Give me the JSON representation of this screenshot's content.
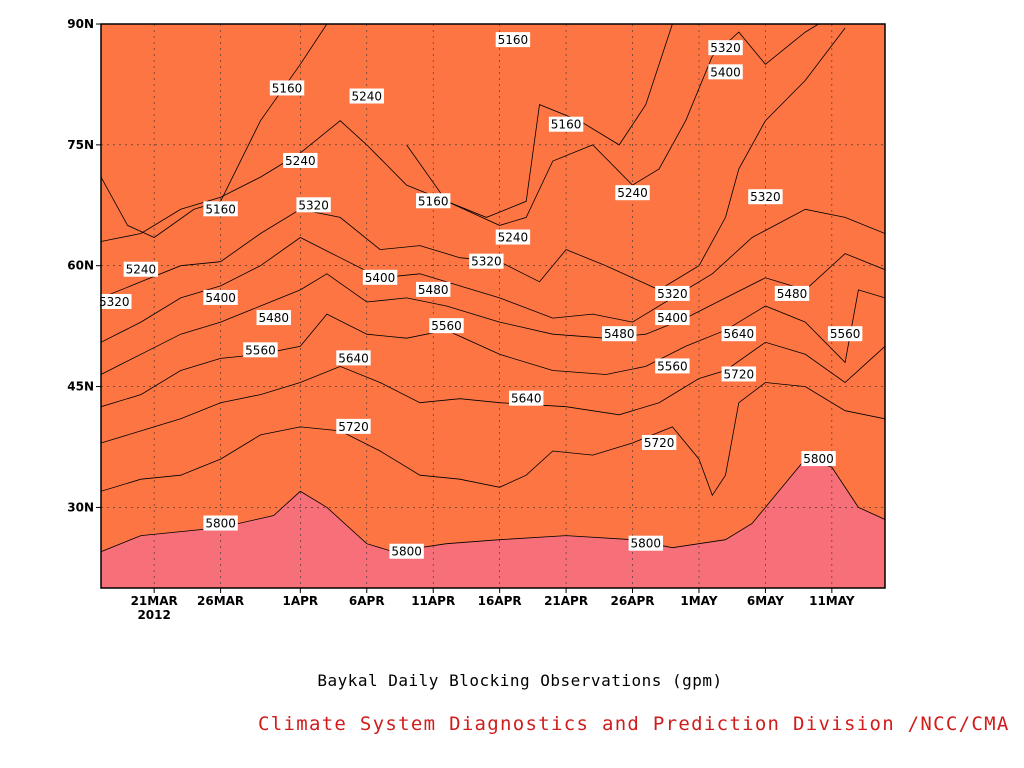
{
  "chart_data": {
    "type": "heatmap",
    "subtype": "filled-contour (latitude-time)",
    "title": "Baykal Daily Blocking Observations (gpm)",
    "credit": "Climate System Diagnostics and Prediction Division /NCC/CMA",
    "xlabel": "",
    "ylabel": "",
    "x_ticks": [
      {
        "value": "2012-03-21",
        "label": "21MAR",
        "sublabel": "2012"
      },
      {
        "value": "2012-03-26",
        "label": "26MAR"
      },
      {
        "value": "2012-04-01",
        "label": "1APR"
      },
      {
        "value": "2012-04-06",
        "label": "6APR"
      },
      {
        "value": "2012-04-11",
        "label": "11APR"
      },
      {
        "value": "2012-04-16",
        "label": "16APR"
      },
      {
        "value": "2012-04-21",
        "label": "21APR"
      },
      {
        "value": "2012-04-26",
        "label": "26APR"
      },
      {
        "value": "2012-05-01",
        "label": "1MAY"
      },
      {
        "value": "2012-05-06",
        "label": "6MAY"
      },
      {
        "value": "2012-05-11",
        "label": "11MAY"
      }
    ],
    "xlim": [
      "2012-03-17",
      "2012-05-15"
    ],
    "y_ticks": [
      {
        "value": 30,
        "label": "30N"
      },
      {
        "value": 45,
        "label": "45N"
      },
      {
        "value": 60,
        "label": "60N"
      },
      {
        "value": 75,
        "label": "75N"
      },
      {
        "value": 90,
        "label": "90N"
      }
    ],
    "ylim": [
      20,
      90
    ],
    "grid": true,
    "contour_levels": [
      5160,
      5240,
      5320,
      5400,
      5480,
      5560,
      5640,
      5720,
      5800
    ],
    "fill_colors": [
      "#0c1370",
      "#1519e1",
      "#5051ef",
      "#5889e2",
      "#66c3fb",
      "#fdfd7a",
      "#fde19e",
      "#fda267",
      "#fd7542",
      "#f66f79"
    ],
    "contour_lines": [
      {
        "level": 5800,
        "points": [
          [
            "2012-03-17",
            24.5
          ],
          [
            "2012-03-20",
            26.5
          ],
          [
            "2012-03-23",
            27
          ],
          [
            "2012-03-26",
            27.5
          ],
          [
            "2012-03-30",
            29
          ],
          [
            "2012-04-01",
            32
          ],
          [
            "2012-04-03",
            30
          ],
          [
            "2012-04-06",
            25.5
          ],
          [
            "2012-04-08",
            24.5
          ],
          [
            "2012-04-12",
            25.5
          ],
          [
            "2012-04-16",
            26
          ],
          [
            "2012-04-21",
            26.5
          ],
          [
            "2012-04-26",
            26
          ],
          [
            "2012-04-29",
            25
          ],
          [
            "2012-05-03",
            26
          ],
          [
            "2012-05-05",
            28
          ],
          [
            "2012-05-07",
            32
          ],
          [
            "2012-05-09",
            36
          ],
          [
            "2012-05-11",
            35
          ],
          [
            "2012-05-13",
            30
          ],
          [
            "2012-05-15",
            28.5
          ]
        ]
      },
      {
        "level": 5720,
        "points": [
          [
            "2012-03-17",
            32
          ],
          [
            "2012-03-20",
            33.5
          ],
          [
            "2012-03-23",
            34
          ],
          [
            "2012-03-26",
            36
          ],
          [
            "2012-03-29",
            39
          ],
          [
            "2012-04-01",
            40
          ],
          [
            "2012-04-04",
            39.5
          ],
          [
            "2012-04-07",
            37
          ],
          [
            "2012-04-10",
            34
          ],
          [
            "2012-04-13",
            33.5
          ],
          [
            "2012-04-16",
            32.5
          ],
          [
            "2012-04-18",
            34
          ],
          [
            "2012-04-20",
            37
          ],
          [
            "2012-04-23",
            36.5
          ],
          [
            "2012-04-26",
            38
          ],
          [
            "2012-04-29",
            40
          ],
          [
            "2012-05-01",
            36
          ],
          [
            "2012-05-02",
            31.5
          ],
          [
            "2012-05-03",
            34
          ],
          [
            "2012-05-04",
            43
          ],
          [
            "2012-05-06",
            45.5
          ],
          [
            "2012-05-09",
            45
          ],
          [
            "2012-05-12",
            42
          ],
          [
            "2012-05-15",
            41
          ]
        ]
      },
      {
        "level": 5640,
        "points": [
          [
            "2012-03-17",
            38
          ],
          [
            "2012-03-20",
            39.5
          ],
          [
            "2012-03-23",
            41
          ],
          [
            "2012-03-26",
            43
          ],
          [
            "2012-03-29",
            44
          ],
          [
            "2012-04-01",
            45.5
          ],
          [
            "2012-04-04",
            47.5
          ],
          [
            "2012-04-07",
            45.5
          ],
          [
            "2012-04-10",
            43
          ],
          [
            "2012-04-13",
            43.5
          ],
          [
            "2012-04-16",
            43
          ],
          [
            "2012-04-21",
            42.5
          ],
          [
            "2012-04-25",
            41.5
          ],
          [
            "2012-04-28",
            43
          ],
          [
            "2012-05-01",
            46
          ],
          [
            "2012-05-03",
            47
          ],
          [
            "2012-05-06",
            50.5
          ],
          [
            "2012-05-09",
            49
          ],
          [
            "2012-05-12",
            45.5
          ],
          [
            "2012-05-15",
            50
          ]
        ]
      },
      {
        "level": 5560,
        "points": [
          [
            "2012-03-17",
            42.5
          ],
          [
            "2012-03-20",
            44
          ],
          [
            "2012-03-23",
            47
          ],
          [
            "2012-03-26",
            48.5
          ],
          [
            "2012-03-29",
            49
          ],
          [
            "2012-04-01",
            50
          ],
          [
            "2012-04-03",
            54
          ],
          [
            "2012-04-06",
            51.5
          ],
          [
            "2012-04-09",
            51
          ],
          [
            "2012-04-12",
            52
          ],
          [
            "2012-04-16",
            49
          ],
          [
            "2012-04-20",
            47
          ],
          [
            "2012-04-24",
            46.5
          ],
          [
            "2012-04-27",
            47.5
          ],
          [
            "2012-04-30",
            50
          ],
          [
            "2012-05-03",
            52
          ],
          [
            "2012-05-06",
            55
          ],
          [
            "2012-05-09",
            53
          ],
          [
            "2012-05-12",
            48
          ],
          [
            "2012-05-13",
            57
          ],
          [
            "2012-05-15",
            56
          ]
        ]
      },
      {
        "level": 5480,
        "points": [
          [
            "2012-03-17",
            46.5
          ],
          [
            "2012-03-20",
            49
          ],
          [
            "2012-03-23",
            51.5
          ],
          [
            "2012-03-26",
            53
          ],
          [
            "2012-03-29",
            55
          ],
          [
            "2012-04-01",
            57
          ],
          [
            "2012-04-03",
            59
          ],
          [
            "2012-04-06",
            55.5
          ],
          [
            "2012-04-09",
            56
          ],
          [
            "2012-04-12",
            55
          ],
          [
            "2012-04-16",
            53
          ],
          [
            "2012-04-20",
            51.5
          ],
          [
            "2012-04-24",
            51
          ],
          [
            "2012-04-27",
            51.5
          ],
          [
            "2012-04-30",
            53.5
          ],
          [
            "2012-05-03",
            56
          ],
          [
            "2012-05-06",
            58.5
          ],
          [
            "2012-05-09",
            57
          ],
          [
            "2012-05-12",
            61.5
          ],
          [
            "2012-05-15",
            59.5
          ]
        ]
      },
      {
        "level": 5400,
        "points": [
          [
            "2012-03-17",
            50.5
          ],
          [
            "2012-03-20",
            53
          ],
          [
            "2012-03-23",
            56
          ],
          [
            "2012-03-26",
            57.5
          ],
          [
            "2012-03-29",
            60
          ],
          [
            "2012-04-01",
            63.5
          ],
          [
            "2012-04-04",
            61
          ],
          [
            "2012-04-07",
            58.5
          ],
          [
            "2012-04-10",
            59
          ],
          [
            "2012-04-13",
            57.5
          ],
          [
            "2012-04-16",
            56
          ],
          [
            "2012-04-20",
            53.5
          ],
          [
            "2012-04-23",
            54
          ],
          [
            "2012-04-26",
            53
          ],
          [
            "2012-04-29",
            56
          ],
          [
            "2012-05-02",
            59
          ],
          [
            "2012-05-05",
            63.5
          ],
          [
            "2012-05-09",
            67
          ],
          [
            "2012-05-12",
            66
          ],
          [
            "2012-05-15",
            64
          ]
        ]
      },
      {
        "level": 5320,
        "points": [
          [
            "2012-03-17",
            56
          ],
          [
            "2012-03-20",
            58
          ],
          [
            "2012-03-23",
            60
          ],
          [
            "2012-03-26",
            60.5
          ],
          [
            "2012-03-29",
            64
          ],
          [
            "2012-04-01",
            67
          ],
          [
            "2012-04-04",
            66
          ],
          [
            "2012-04-07",
            62
          ],
          [
            "2012-04-10",
            62.5
          ],
          [
            "2012-04-13",
            61
          ],
          [
            "2012-04-16",
            60.5
          ],
          [
            "2012-04-19",
            58
          ],
          [
            "2012-04-21",
            62
          ],
          [
            "2012-04-24",
            60
          ],
          [
            "2012-04-28",
            57
          ],
          [
            "2012-05-01",
            60
          ],
          [
            "2012-05-03",
            66
          ],
          [
            "2012-05-04",
            72
          ],
          [
            "2012-05-06",
            78
          ],
          [
            "2012-05-09",
            83
          ],
          [
            "2012-05-12",
            89.5
          ]
        ]
      },
      {
        "level": 5240,
        "points": [
          [
            "2012-03-17",
            63
          ],
          [
            "2012-03-20",
            64
          ],
          [
            "2012-03-23",
            67
          ],
          [
            "2012-03-26",
            68.5
          ],
          [
            "2012-03-29",
            71
          ],
          [
            "2012-04-01",
            74
          ],
          [
            "2012-04-04",
            78
          ],
          [
            "2012-04-06",
            75
          ],
          [
            "2012-04-09",
            70
          ],
          [
            "2012-04-12",
            68
          ],
          [
            "2012-04-16",
            65
          ],
          [
            "2012-04-18",
            66
          ],
          [
            "2012-04-20",
            73
          ],
          [
            "2012-04-23",
            75
          ],
          [
            "2012-04-26",
            70
          ],
          [
            "2012-04-28",
            72
          ],
          [
            "2012-04-30",
            78
          ],
          [
            "2012-05-02",
            86
          ],
          [
            "2012-05-04",
            89
          ],
          [
            "2012-05-06",
            85
          ],
          [
            "2012-05-09",
            89
          ],
          [
            "2012-05-10",
            90
          ]
        ]
      },
      {
        "level": 5160,
        "points": [
          [
            "2012-03-17",
            71
          ],
          [
            "2012-03-19",
            65
          ],
          [
            "2012-03-21",
            63.5
          ],
          [
            "2012-03-24",
            67
          ],
          [
            "2012-03-26",
            68
          ],
          [
            "2012-03-29",
            78
          ],
          [
            "2012-04-01",
            85
          ],
          [
            "2012-04-03",
            90
          ]
        ]
      },
      {
        "level": 5160,
        "points": [
          [
            "2012-04-09",
            75
          ],
          [
            "2012-04-12",
            68
          ],
          [
            "2012-04-15",
            66
          ],
          [
            "2012-04-18",
            68
          ],
          [
            "2012-04-19",
            80
          ],
          [
            "2012-04-22",
            78
          ],
          [
            "2012-04-25",
            75
          ],
          [
            "2012-04-27",
            80
          ],
          [
            "2012-04-29",
            90
          ]
        ]
      }
    ],
    "contour_labels": [
      {
        "text": "5160",
        "x": "2012-03-31",
        "y": 82
      },
      {
        "text": "5240",
        "x": "2012-04-06",
        "y": 81
      },
      {
        "text": "5160",
        "x": "2012-04-17",
        "y": 88
      },
      {
        "text": "5320",
        "x": "2012-05-03",
        "y": 87
      },
      {
        "text": "5400",
        "x": "2012-05-03",
        "y": 84
      },
      {
        "text": "5160",
        "x": "2012-04-21",
        "y": 77.5
      },
      {
        "text": "5240",
        "x": "2012-04-01",
        "y": 73
      },
      {
        "text": "5160",
        "x": "2012-04-11",
        "y": 68
      },
      {
        "text": "5240",
        "x": "2012-04-26",
        "y": 69
      },
      {
        "text": "5320",
        "x": "2012-05-06",
        "y": 68.5
      },
      {
        "text": "5160",
        "x": "2012-03-26",
        "y": 67
      },
      {
        "text": "5320",
        "x": "2012-04-02",
        "y": 67.5
      },
      {
        "text": "5240",
        "x": "2012-04-17",
        "y": 63.5
      },
      {
        "text": "5320",
        "x": "2012-04-15",
        "y": 60.5
      },
      {
        "text": "5240",
        "x": "2012-03-20",
        "y": 59.5
      },
      {
        "text": "5400",
        "x": "2012-04-07",
        "y": 58.5
      },
      {
        "text": "5320",
        "x": "2012-04-29",
        "y": 56.5
      },
      {
        "text": "5320",
        "x": "2012-03-18",
        "y": 55.5
      },
      {
        "text": "5400",
        "x": "2012-03-26",
        "y": 56
      },
      {
        "text": "5480",
        "x": "2012-04-11",
        "y": 57
      },
      {
        "text": "5480",
        "x": "2012-05-08",
        "y": 56.5
      },
      {
        "text": "5480",
        "x": "2012-03-30",
        "y": 53.5
      },
      {
        "text": "5400",
        "x": "2012-04-29",
        "y": 53.5
      },
      {
        "text": "5560",
        "x": "2012-04-12",
        "y": 52.5
      },
      {
        "text": "5480",
        "x": "2012-04-25",
        "y": 51.5
      },
      {
        "text": "5640",
        "x": "2012-05-04",
        "y": 51.5
      },
      {
        "text": "5560",
        "x": "2012-05-12",
        "y": 51.5
      },
      {
        "text": "5560",
        "x": "2012-03-29",
        "y": 49.5
      },
      {
        "text": "5640",
        "x": "2012-04-05",
        "y": 48.5
      },
      {
        "text": "5560",
        "x": "2012-04-29",
        "y": 47.5
      },
      {
        "text": "5720",
        "x": "2012-05-04",
        "y": 46.5
      },
      {
        "text": "5640",
        "x": "2012-04-18",
        "y": 43.5
      },
      {
        "text": "5720",
        "x": "2012-04-05",
        "y": 40
      },
      {
        "text": "5720",
        "x": "2012-04-28",
        "y": 38
      },
      {
        "text": "5800",
        "x": "2012-05-10",
        "y": 36
      },
      {
        "text": "5800",
        "x": "2012-03-26",
        "y": 28
      },
      {
        "text": "5800",
        "x": "2012-04-09",
        "y": 24.5
      },
      {
        "text": "5800",
        "x": "2012-04-27",
        "y": 25.5
      }
    ]
  }
}
